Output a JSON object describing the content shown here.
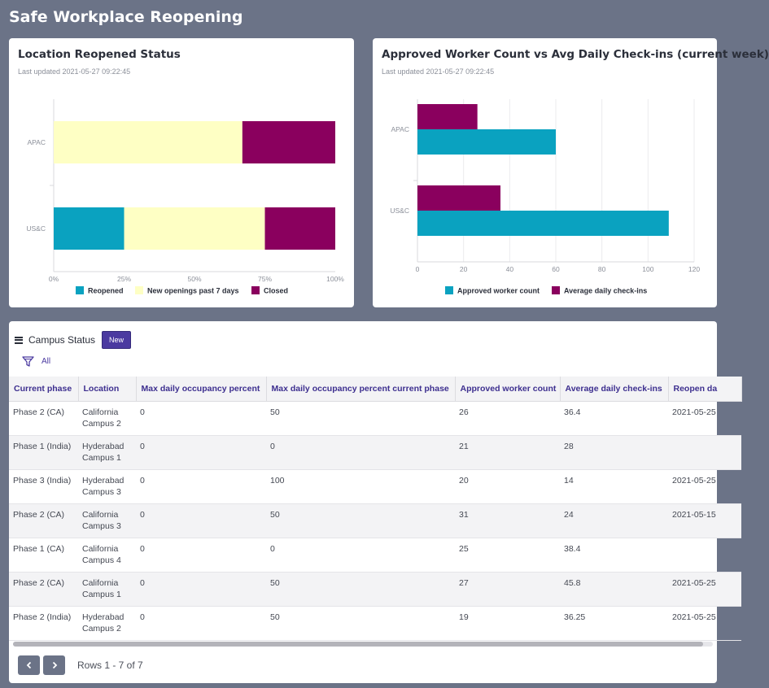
{
  "page": {
    "title": "Safe Workplace Reopening"
  },
  "colors": {
    "reopened": "#0aa2c0",
    "new_openings": "#feffc4",
    "closed": "#8a005e",
    "accent": "#4b3aa0"
  },
  "charts": {
    "status": {
      "title": "Location Reopened Status",
      "updated": "Last updated 2021-05-27 09:22:45"
    },
    "workers": {
      "title": "Approved Worker Count vs Avg Daily Check-ins (current week)",
      "updated": "Last updated 2021-05-27 09:22:45"
    }
  },
  "chart_data": [
    {
      "type": "bar",
      "orientation": "horizontal",
      "stacked": true,
      "title": "Location Reopened Status",
      "categories": [
        "APAC",
        "US&C"
      ],
      "series": [
        {
          "name": "Reopened",
          "values": [
            0,
            25
          ]
        },
        {
          "name": "New openings past 7 days",
          "values": [
            67,
            50
          ]
        },
        {
          "name": "Closed",
          "values": [
            33,
            25
          ]
        }
      ],
      "xlim": [
        0,
        100
      ],
      "xticks": [
        "0%",
        "25%",
        "50%",
        "75%",
        "100%"
      ],
      "legend": "bottom"
    },
    {
      "type": "bar",
      "orientation": "horizontal",
      "stacked": false,
      "title": "Approved Worker Count vs Avg Daily Check-ins (current week)",
      "categories": [
        "APAC",
        "US&C"
      ],
      "series": [
        {
          "name": "Approved worker count",
          "values": [
            60,
            109
          ]
        },
        {
          "name": "Average daily check-ins",
          "values": [
            26,
            36
          ]
        }
      ],
      "xlim": [
        0,
        120
      ],
      "xticks": [
        "0",
        "20",
        "40",
        "60",
        "80",
        "100",
        "120"
      ],
      "grid": true,
      "legend": "bottom"
    }
  ],
  "table": {
    "title": "Campus Status",
    "new_label": "New",
    "filter_label": "All",
    "columns": [
      "Current phase",
      "Location",
      "Max daily occupancy percent",
      "Max daily occupancy percent current phase",
      "Approved worker count",
      "Average daily check-ins",
      "Reopen da"
    ],
    "rows": [
      [
        "Phase 2 (CA)",
        "California Campus 2",
        "0",
        "50",
        "26",
        "36.4",
        "2021-05-25"
      ],
      [
        "Phase 1 (India)",
        "Hyderabad Campus 1",
        "0",
        "0",
        "21",
        "28",
        ""
      ],
      [
        "Phase 3 (India)",
        "Hyderabad Campus 3",
        "0",
        "100",
        "20",
        "14",
        "2021-05-25"
      ],
      [
        "Phase 2 (CA)",
        "California Campus 3",
        "0",
        "50",
        "31",
        "24",
        "2021-05-15"
      ],
      [
        "Phase 1 (CA)",
        "California Campus 4",
        "0",
        "0",
        "25",
        "38.4",
        ""
      ],
      [
        "Phase 2 (CA)",
        "California Campus 1",
        "0",
        "50",
        "27",
        "45.8",
        "2021-05-25"
      ],
      [
        "Phase 2 (India)",
        "Hyderabad Campus 2",
        "0",
        "50",
        "19",
        "36.25",
        "2021-05-25"
      ]
    ],
    "rows_label": "Rows 1 - 7 of 7"
  }
}
